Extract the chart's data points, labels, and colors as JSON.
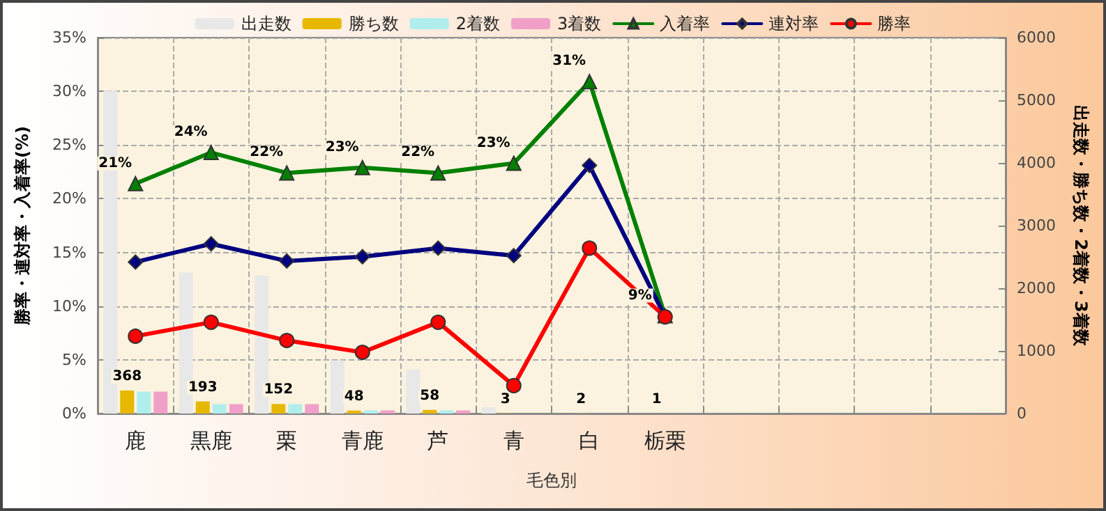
{
  "chart_data": {
    "type": "bar",
    "xlabel": "毛色別",
    "ylabel": "勝率・連対率・入着率(%)",
    "y2label": "出走数・勝ち数・2着数・3着数",
    "categories": [
      "鹿",
      "黒鹿",
      "栗",
      "青鹿",
      "芦",
      "青",
      "白",
      "栃栗",
      null,
      null,
      null,
      null
    ],
    "series": [
      {
        "name": "出走数",
        "axis": "y2",
        "color": "#e8e8e8",
        "values": [
          5150,
          2250,
          2200,
          850,
          700,
          100,
          null,
          null,
          null,
          null,
          null,
          null
        ]
      },
      {
        "name": "勝ち数",
        "axis": "y2",
        "color": "#e6b800",
        "values": [
          368,
          193,
          152,
          48,
          58,
          3,
          2,
          1,
          null,
          null,
          null,
          null
        ],
        "value_labels": [
          "368",
          "193",
          "152",
          "48",
          "58",
          "3",
          "2",
          "1",
          null,
          null,
          null,
          null
        ]
      },
      {
        "name": "2着数",
        "axis": "y2",
        "color": "#b0eeee",
        "values": [
          350,
          150,
          150,
          50,
          50,
          0,
          0,
          0,
          null,
          null,
          null,
          null
        ]
      },
      {
        "name": "3着数",
        "axis": "y2",
        "color": "#f0a0c8",
        "values": [
          350,
          150,
          150,
          50,
          50,
          0,
          0,
          0,
          null,
          null,
          null,
          null
        ]
      },
      {
        "name": "入着率",
        "type": "line",
        "marker": "triangle",
        "color": "#008000",
        "values": [
          21.4,
          24.3,
          22.4,
          22.9,
          22.4,
          23.3,
          30.9,
          9.1,
          null,
          null,
          null,
          null
        ],
        "value_labels": [
          "21%",
          "24%",
          "22%",
          "23%",
          "22%",
          "23%",
          "31%",
          "9%",
          null,
          null,
          null,
          null
        ]
      },
      {
        "name": "連対率",
        "type": "line",
        "marker": "diamond",
        "color": "#000080",
        "values": [
          14.1,
          15.8,
          14.2,
          14.6,
          15.4,
          14.7,
          23.1,
          9,
          null,
          null,
          null,
          null
        ]
      },
      {
        "name": "勝率",
        "type": "line",
        "marker": "circle",
        "color": "#ff0000",
        "values": [
          7.2,
          8.5,
          6.8,
          5.7,
          8.5,
          2.6,
          15.4,
          9,
          null,
          null,
          null,
          null
        ]
      }
    ],
    "ylim": [
      0,
      35
    ],
    "yticks": [
      {
        "value": 0,
        "label": "0%"
      },
      {
        "value": 5,
        "label": "5%"
      },
      {
        "value": 10,
        "label": "10%"
      },
      {
        "value": 15,
        "label": "15%"
      },
      {
        "value": 20,
        "label": "20%"
      },
      {
        "value": 25,
        "label": "25%"
      },
      {
        "value": 30,
        "label": "30%"
      },
      {
        "value": 35,
        "label": "35%"
      }
    ],
    "y2lim": [
      0,
      6000
    ],
    "y2ticks": [
      0,
      1000,
      2000,
      3000,
      4000,
      5000,
      6000
    ],
    "grid": true,
    "legend": "top",
    "line_style": "solid"
  }
}
